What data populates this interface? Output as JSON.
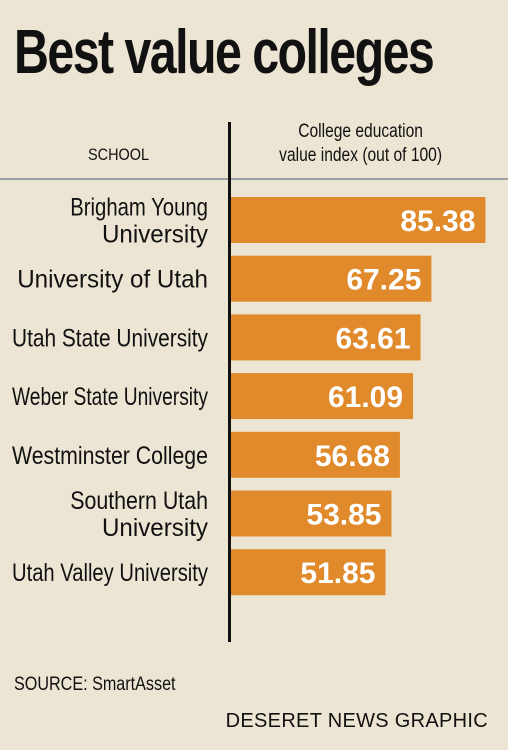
{
  "title": "Best value colleges",
  "header": {
    "school": "SCHOOL",
    "value_line1": "College education",
    "value_line2": "value index (out of 100)"
  },
  "source": "SOURCE: SmartAsset",
  "credit": "DESERET NEWS GRAPHIC",
  "colors": {
    "bar": "#e08a2c",
    "background": "#ece5d4",
    "value_text": "#ffffff"
  },
  "chart_data": {
    "type": "bar",
    "orientation": "horizontal",
    "categories": [
      [
        "Brigham Young",
        "University"
      ],
      [
        "University of Utah"
      ],
      [
        "Utah State University"
      ],
      [
        "Weber State University"
      ],
      [
        "Westminster College"
      ],
      [
        "Southern Utah",
        "University"
      ],
      [
        "Utah Valley University"
      ]
    ],
    "values": [
      85.38,
      67.25,
      63.61,
      61.09,
      56.68,
      53.85,
      51.85
    ],
    "value_labels": [
      "85.38",
      "67.25",
      "63.61",
      "61.09",
      "56.68",
      "53.85",
      "51.85"
    ],
    "xlim": [
      0,
      100
    ]
  }
}
